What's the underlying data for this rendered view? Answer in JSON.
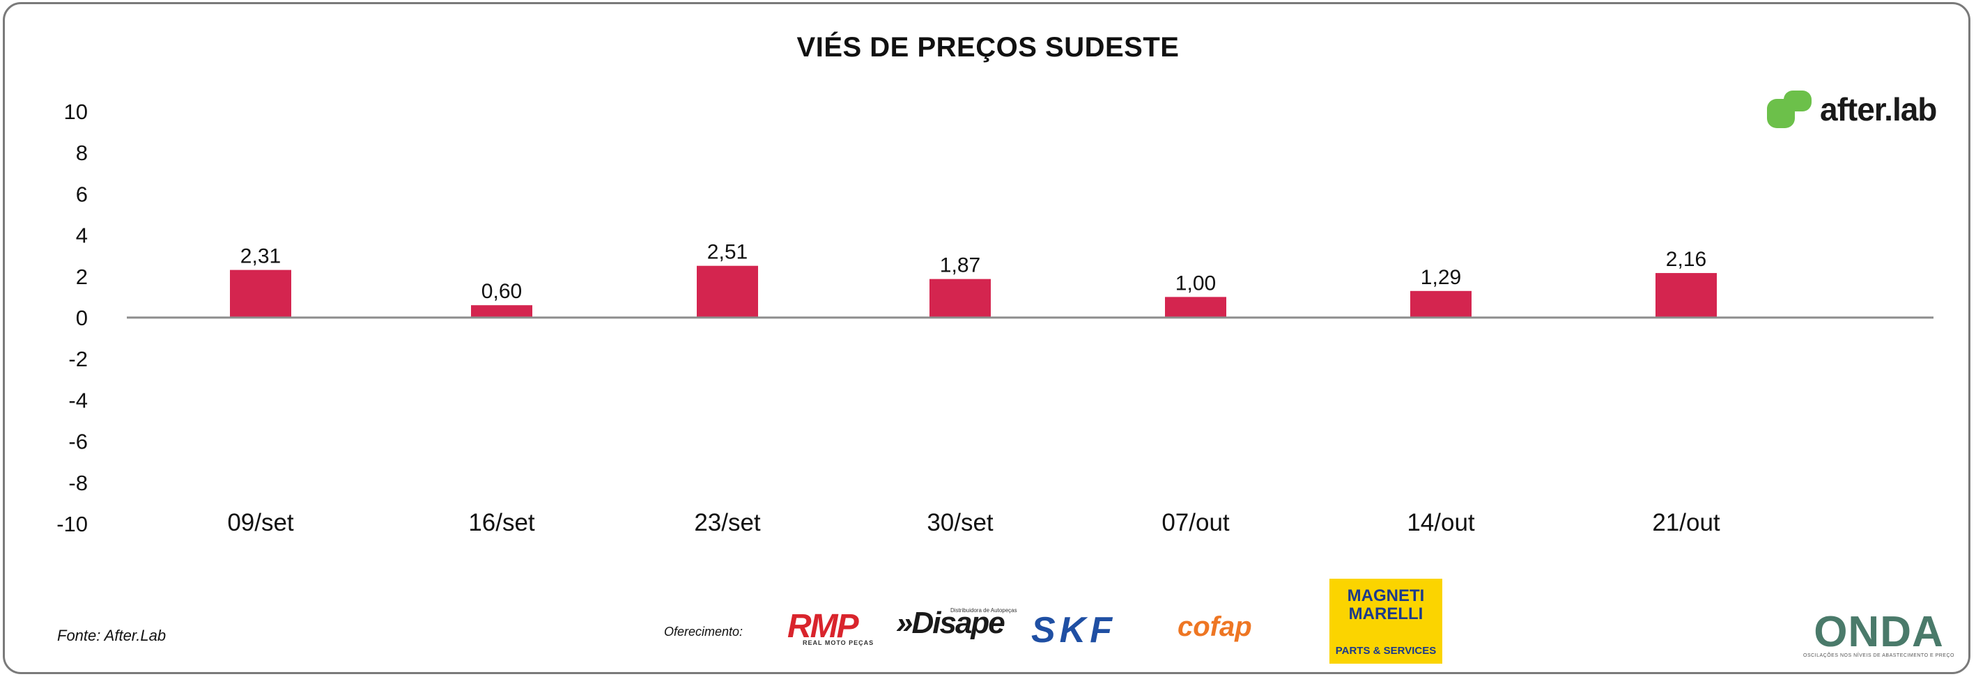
{
  "chart_data": {
    "type": "bar",
    "title": "VIÉS DE PREÇOS SUDESTE",
    "categories": [
      "09/set",
      "16/set",
      "23/set",
      "30/set",
      "07/out",
      "14/out",
      "21/out"
    ],
    "values": [
      2.31,
      0.6,
      2.51,
      1.87,
      1.0,
      1.29,
      2.16
    ],
    "value_labels": [
      "2,31",
      "0,60",
      "2,51",
      "1,87",
      "1,00",
      "1,29",
      "2,16"
    ],
    "ylim": [
      -10,
      10
    ],
    "yticks": [
      10,
      8,
      6,
      4,
      2,
      0,
      -2,
      -4,
      -6,
      -8,
      -10
    ],
    "xlabel": "",
    "ylabel": "",
    "grid": false,
    "bar_color": "#d4254f",
    "axis_color": "#8c8c8c"
  },
  "footer": {
    "source": "Fonte: After.Lab",
    "sponsor_label": "Oferecimento:"
  },
  "logos": {
    "afterlab": "after.lab",
    "afterlab_color": "#6cc04a",
    "rmp": "RMP",
    "rmp_sub": "REAL MOTO PEÇAS",
    "disape": "»Disape",
    "disape_sub": "Distribuidora de Autopeças",
    "skf": "SKF",
    "cofap": "cofap",
    "magneti_top": "MAGNETI MARELLI",
    "magneti_bottom": "PARTS & SERVICES",
    "onda": "ONDA",
    "onda_sub": "OSCILAÇÕES NOS NÍVEIS DE ABASTECIMENTO E PREÇO"
  }
}
